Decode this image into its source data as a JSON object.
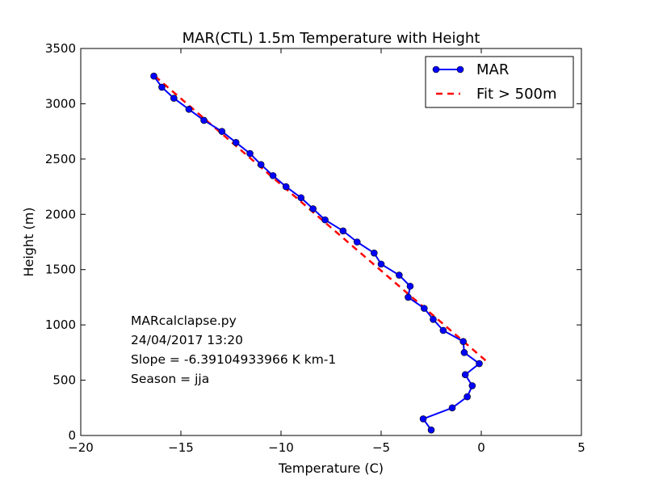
{
  "chart_data": {
    "type": "line",
    "title": "MAR(CTL) 1.5m Temperature with Height",
    "xlabel": "Temperature (C)",
    "ylabel": "Height (m)",
    "xlim": [
      -20,
      5
    ],
    "ylim": [
      0,
      3500
    ],
    "xticks": [
      -20,
      -15,
      -10,
      -5,
      0,
      5
    ],
    "xtick_labels": [
      "−20",
      "−15",
      "−10",
      "−5",
      "0",
      "5"
    ],
    "yticks": [
      0,
      500,
      1000,
      1500,
      2000,
      2500,
      3000,
      3500
    ],
    "ytick_labels": [
      "0",
      "500",
      "1000",
      "1500",
      "2000",
      "2500",
      "3000",
      "3500"
    ],
    "grid": false,
    "legend_position": "top-right",
    "series": [
      {
        "name": "MAR",
        "style": "solid-line-with-markers",
        "color": "#0000ff",
        "points": [
          {
            "x": -2.5,
            "y": 50
          },
          {
            "x": -2.9,
            "y": 150
          },
          {
            "x": -1.45,
            "y": 250
          },
          {
            "x": -0.7,
            "y": 350
          },
          {
            "x": -0.45,
            "y": 450
          },
          {
            "x": -0.8,
            "y": 550
          },
          {
            "x": -0.1,
            "y": 650
          },
          {
            "x": -0.85,
            "y": 750
          },
          {
            "x": -0.9,
            "y": 850
          },
          {
            "x": -1.9,
            "y": 950
          },
          {
            "x": -2.4,
            "y": 1050
          },
          {
            "x": -2.85,
            "y": 1150
          },
          {
            "x": -3.65,
            "y": 1250
          },
          {
            "x": -3.55,
            "y": 1350
          },
          {
            "x": -4.1,
            "y": 1450
          },
          {
            "x": -5.0,
            "y": 1550
          },
          {
            "x": -5.35,
            "y": 1650
          },
          {
            "x": -6.2,
            "y": 1750
          },
          {
            "x": -6.9,
            "y": 1850
          },
          {
            "x": -7.8,
            "y": 1950
          },
          {
            "x": -8.4,
            "y": 2050
          },
          {
            "x": -9.0,
            "y": 2150
          },
          {
            "x": -9.75,
            "y": 2250
          },
          {
            "x": -10.4,
            "y": 2350
          },
          {
            "x": -11.0,
            "y": 2450
          },
          {
            "x": -11.55,
            "y": 2550
          },
          {
            "x": -12.25,
            "y": 2650
          },
          {
            "x": -12.95,
            "y": 2750
          },
          {
            "x": -13.85,
            "y": 2850
          },
          {
            "x": -14.6,
            "y": 2950
          },
          {
            "x": -15.35,
            "y": 3050
          },
          {
            "x": -15.95,
            "y": 3150
          },
          {
            "x": -16.35,
            "y": 3250
          }
        ]
      },
      {
        "name": "Fit > 500m",
        "style": "dashed-line",
        "color": "#ff0000",
        "points": [
          {
            "x": -16.3,
            "y": 3250
          },
          {
            "x": 0.4,
            "y": 650
          }
        ]
      }
    ],
    "annotations": [
      "MARcalclapse.py",
      "24/04/2017 13:20",
      "Slope = -6.39104933966 K km-1",
      "Season  = jja"
    ]
  }
}
